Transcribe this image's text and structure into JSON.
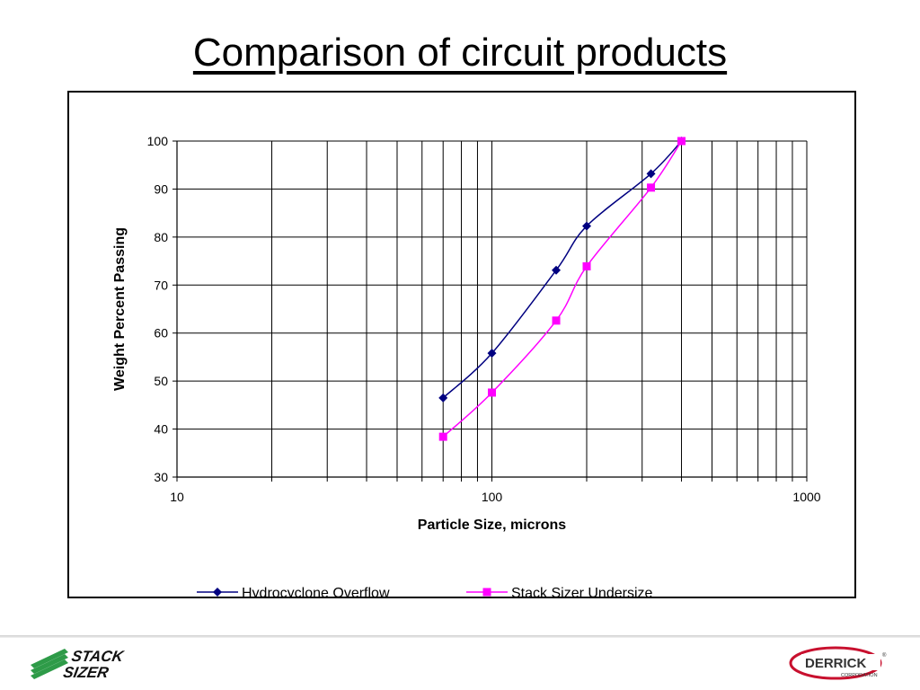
{
  "title": "Comparison of circuit products",
  "logos": {
    "left": "STACK SIZER",
    "right": "DERRICK CORPORATION"
  },
  "chart_data": {
    "type": "line",
    "title": "Comparison of circuit products",
    "xlabel": "Particle Size, microns",
    "ylabel": "Weight Percent Passing",
    "xscale": "log",
    "xlim": [
      10,
      1000
    ],
    "ylim": [
      30,
      100
    ],
    "xticks": [
      10,
      100,
      1000
    ],
    "yticks": [
      30,
      40,
      50,
      60,
      70,
      80,
      90,
      100
    ],
    "grid": true,
    "legend": "bottom",
    "series": [
      {
        "name": "Hydrocyclone Overflow",
        "color": "#000080",
        "marker": "diamond",
        "x": [
          70,
          100,
          160,
          200,
          320,
          400
        ],
        "y": [
          46.5,
          55.8,
          73.1,
          82.3,
          93.2,
          100
        ]
      },
      {
        "name": "Stack Sizer Undersize",
        "color": "#ff00ff",
        "marker": "square",
        "x": [
          70,
          100,
          160,
          200,
          320,
          400
        ],
        "y": [
          38.4,
          47.6,
          62.6,
          73.9,
          90.3,
          100
        ]
      }
    ]
  }
}
